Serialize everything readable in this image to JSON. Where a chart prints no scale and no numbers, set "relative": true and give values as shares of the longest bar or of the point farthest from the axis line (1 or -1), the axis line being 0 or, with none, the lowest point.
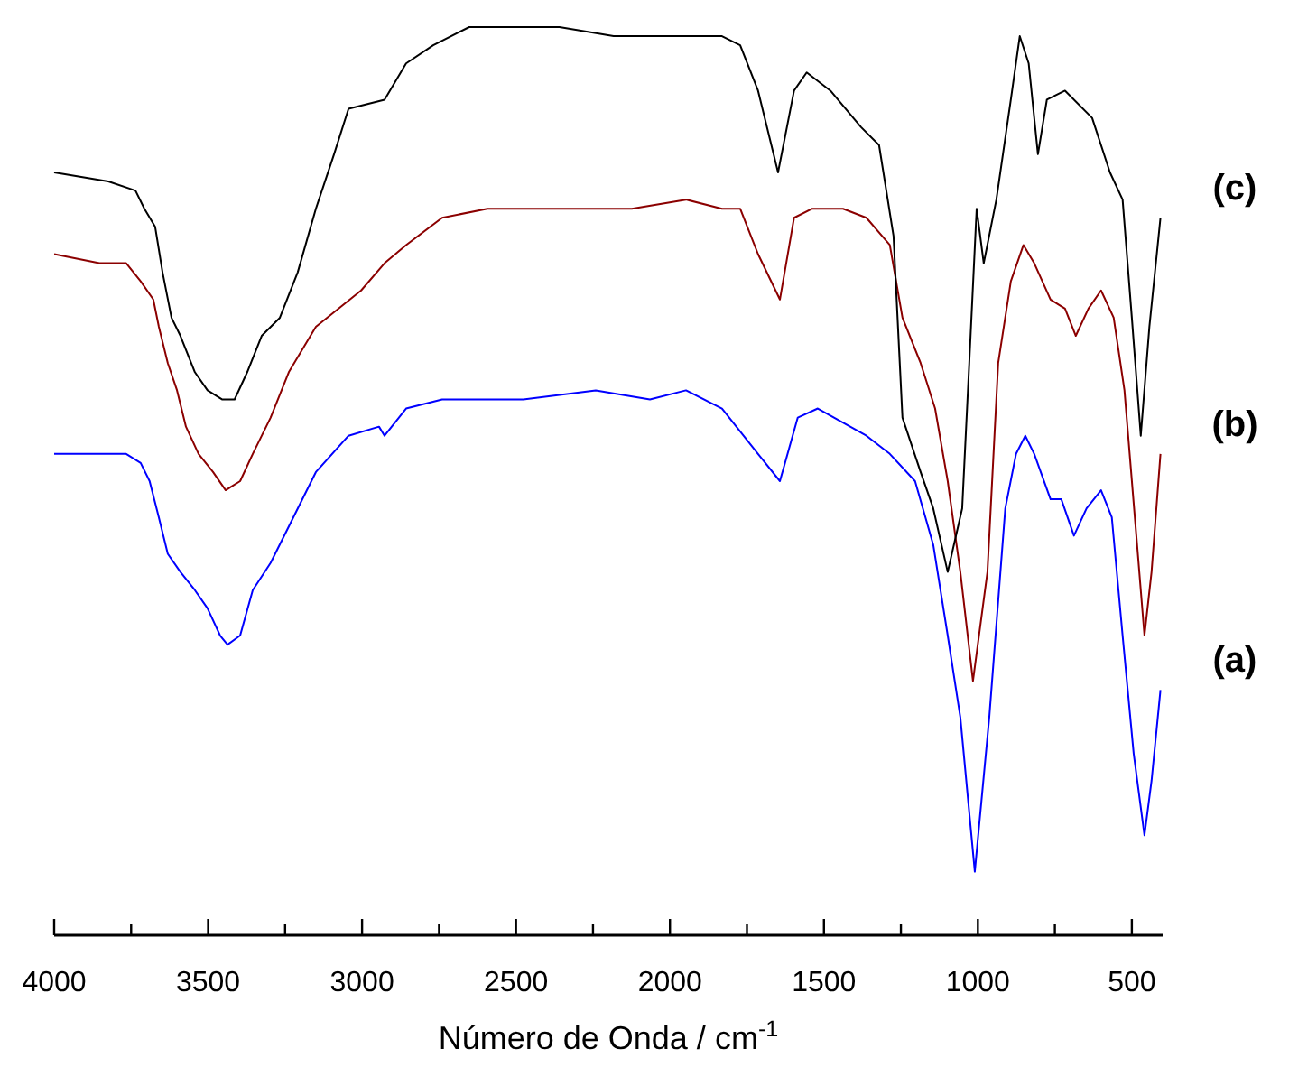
{
  "chart_data": {
    "type": "line",
    "relative": true,
    "xlabel": "Número de Onda / cm$^{-1}$",
    "xlim": [
      4000,
      400
    ],
    "xticks": [
      4000,
      {
        "value": 3750,
        "label": null
      },
      3500,
      {
        "value": 3250,
        "label": null
      },
      3000,
      {
        "value": 2750,
        "label": null
      },
      2500,
      {
        "value": 2250,
        "label": null
      },
      2000,
      {
        "value": 1750,
        "label": null
      },
      1500,
      {
        "value": 1250,
        "label": null
      },
      1000,
      {
        "value": 750,
        "label": null
      },
      500
    ],
    "series": [
      {
        "name": "(a)",
        "color": "#0000ff",
        "x": [
          4000,
          3853,
          3766,
          3719,
          3690,
          3660,
          3631,
          3590,
          3543,
          3502,
          3461,
          3437,
          3396,
          3355,
          3297,
          3238,
          3150,
          3044,
          2945,
          2927,
          2857,
          2740,
          2476,
          2241,
          2065,
          1948,
          1831,
          1714,
          1643,
          1585,
          1520,
          1362,
          1286,
          1204,
          1145,
          1098,
          1057,
          1010,
          963,
          911,
          876,
          846,
          817,
          764,
          729,
          688,
          647,
          600,
          565,
          530,
          494,
          459,
          436,
          407
        ],
        "values": [
          0.53,
          0.53,
          0.53,
          0.52,
          0.5,
          0.46,
          0.42,
          0.4,
          0.38,
          0.36,
          0.33,
          0.32,
          0.33,
          0.38,
          0.41,
          0.45,
          0.51,
          0.55,
          0.56,
          0.55,
          0.58,
          0.59,
          0.59,
          0.6,
          0.59,
          0.6,
          0.58,
          0.53,
          0.5,
          0.57,
          0.58,
          0.55,
          0.53,
          0.5,
          0.43,
          0.33,
          0.24,
          0.07,
          0.24,
          0.47,
          0.53,
          0.55,
          0.53,
          0.48,
          0.48,
          0.44,
          0.47,
          0.49,
          0.46,
          0.33,
          0.2,
          0.11,
          0.17,
          0.27
        ]
      },
      {
        "name": "(b)",
        "color": "#8b0000",
        "x": [
          4000,
          3853,
          3766,
          3719,
          3678,
          3660,
          3631,
          3601,
          3572,
          3531,
          3484,
          3443,
          3396,
          3355,
          3297,
          3238,
          3150,
          3003,
          2927,
          2857,
          2740,
          2593,
          2359,
          2124,
          1948,
          1831,
          1772,
          1714,
          1643,
          1597,
          1538,
          1438,
          1362,
          1286,
          1245,
          1186,
          1139,
          1098,
          1057,
          1016,
          969,
          934,
          893,
          852,
          817,
          764,
          717,
          682,
          641,
          600,
          559,
          524,
          483,
          459,
          436,
          407
        ],
        "values": [
          0.75,
          0.74,
          0.74,
          0.72,
          0.7,
          0.67,
          0.63,
          0.6,
          0.56,
          0.53,
          0.51,
          0.49,
          0.5,
          0.53,
          0.57,
          0.62,
          0.67,
          0.71,
          0.74,
          0.76,
          0.79,
          0.8,
          0.8,
          0.8,
          0.81,
          0.8,
          0.8,
          0.75,
          0.7,
          0.79,
          0.8,
          0.8,
          0.79,
          0.76,
          0.68,
          0.63,
          0.58,
          0.5,
          0.4,
          0.28,
          0.4,
          0.63,
          0.72,
          0.76,
          0.74,
          0.7,
          0.69,
          0.66,
          0.69,
          0.71,
          0.68,
          0.6,
          0.43,
          0.33,
          0.4,
          0.53
        ]
      },
      {
        "name": "(c)",
        "color": "#000000",
        "x": [
          4000,
          3824,
          3736,
          3707,
          3672,
          3648,
          3619,
          3590,
          3543,
          3502,
          3455,
          3414,
          3373,
          3326,
          3267,
          3209,
          3150,
          3091,
          3044,
          2927,
          2857,
          2769,
          2652,
          2534,
          2417,
          2359,
          2183,
          2007,
          1831,
          1772,
          1714,
          1649,
          1597,
          1556,
          1479,
          1380,
          1321,
          1274,
          1245,
          1186,
          1145,
          1098,
          1051,
          1028,
          1004,
          981,
          940,
          893,
          864,
          835,
          805,
          776,
          717,
          629,
          571,
          530,
          500,
          471,
          443,
          407
        ],
        "values": [
          0.84,
          0.83,
          0.82,
          0.8,
          0.78,
          0.73,
          0.68,
          0.66,
          0.62,
          0.6,
          0.59,
          0.59,
          0.62,
          0.66,
          0.68,
          0.73,
          0.8,
          0.86,
          0.91,
          0.92,
          0.96,
          0.98,
          1,
          1,
          1,
          1,
          0.99,
          0.99,
          0.99,
          0.98,
          0.93,
          0.84,
          0.93,
          0.95,
          0.93,
          0.89,
          0.87,
          0.77,
          0.57,
          0.51,
          0.47,
          0.4,
          0.47,
          0.63,
          0.8,
          0.74,
          0.81,
          0.92,
          0.99,
          0.96,
          0.86,
          0.92,
          0.93,
          0.9,
          0.84,
          0.81,
          0.68,
          0.55,
          0.67,
          0.79
        ]
      }
    ]
  }
}
